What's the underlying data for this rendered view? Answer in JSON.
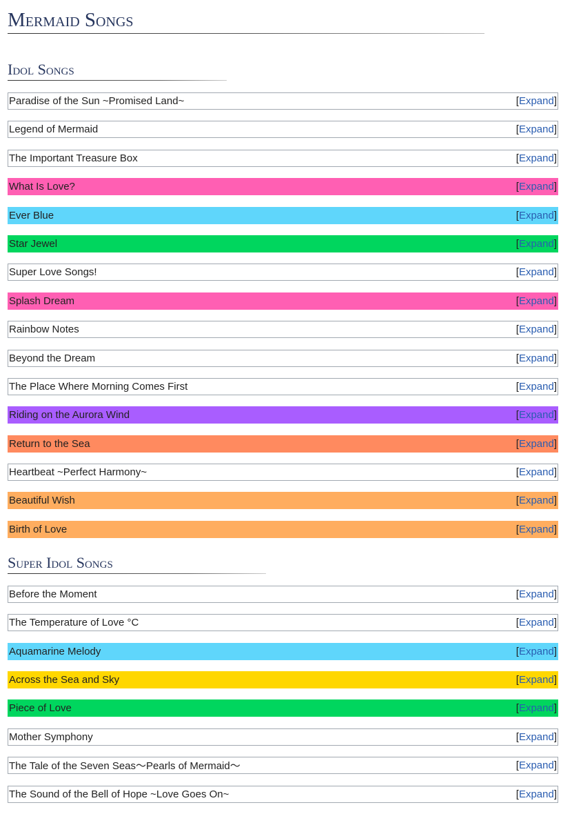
{
  "header": {
    "title": "Mermaid Songs"
  },
  "expand": {
    "open": "[",
    "label": "Expand",
    "close": "]"
  },
  "sections": [
    {
      "title": "Idol Songs",
      "songs": [
        {
          "name": "Paradise of the Sun ~Promised Land~",
          "color": "#ffffff"
        },
        {
          "name": "Legend of Mermaid",
          "color": "#ffffff"
        },
        {
          "name": "The Important Treasure Box",
          "color": "#ffffff"
        },
        {
          "name": "What Is Love?",
          "color": "#ff5fb3"
        },
        {
          "name": "Ever Blue",
          "color": "#5fd6fb"
        },
        {
          "name": "Star Jewel",
          "color": "#00d65e"
        },
        {
          "name": "Super Love Songs!",
          "color": "#ffffff"
        },
        {
          "name": "Splash Dream",
          "color": "#ff5fb3"
        },
        {
          "name": "Rainbow Notes",
          "color": "#ffffff"
        },
        {
          "name": "Beyond the Dream",
          "color": "#ffffff"
        },
        {
          "name": "The Place Where Morning Comes First",
          "color": "#ffffff"
        },
        {
          "name": "Riding on the Aurora Wind",
          "color": "#a95dff"
        },
        {
          "name": "Return to the Sea",
          "color": "#ff8a5f"
        },
        {
          "name": "Heartbeat ~Perfect Harmony~",
          "color": "#ffffff"
        },
        {
          "name": "Beautiful Wish",
          "color": "#ffad5f"
        },
        {
          "name": "Birth of Love",
          "color": "#ffad5f"
        }
      ]
    },
    {
      "title": "Super Idol Songs",
      "songs": [
        {
          "name": "Before the Moment",
          "color": "#ffffff"
        },
        {
          "name": "The Temperature of Love °C",
          "color": "#ffffff"
        },
        {
          "name": "Aquamarine Melody",
          "color": "#5fd6fb"
        },
        {
          "name": "Across the Sea and Sky",
          "color": "#ffd700"
        },
        {
          "name": "Piece of Love",
          "color": "#00d65e"
        },
        {
          "name": "Mother Symphony",
          "color": "#ffffff"
        },
        {
          "name": "The Tale of the Seven Seas〜Pearls of Mermaid〜",
          "color": "#ffffff"
        },
        {
          "name": "The Sound of the Bell of Hope ~Love Goes On~",
          "color": "#ffffff"
        }
      ]
    }
  ]
}
